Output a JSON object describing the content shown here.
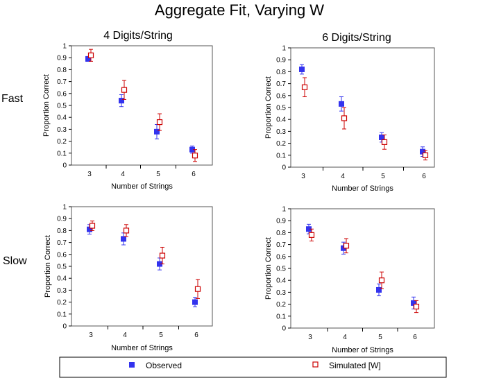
{
  "title": "Aggregate Fit, Varying W",
  "row_labels": [
    "Fast",
    "Slow"
  ],
  "legend": {
    "observed": "Observed",
    "simulated": "Simulated [W]"
  },
  "colors": {
    "observed": "#3333ee",
    "simulated": "#cc0000"
  },
  "chart_data": [
    {
      "type": "scatter",
      "title": "4 Digits/String",
      "row": "Fast",
      "xlabel": "Number of Strings",
      "ylabel": "Proportion Correct",
      "categories": [
        "3",
        "4",
        "5",
        "6"
      ],
      "ylim": [
        0,
        1
      ],
      "yticks": [
        "0",
        "0.1",
        "0.2",
        "0.3",
        "0.4",
        "0.5",
        "0.6",
        "0.7",
        "0.8",
        "0.9",
        "1"
      ],
      "grid": false,
      "series": [
        {
          "name": "Observed",
          "marker": "filled-square",
          "values": [
            0.89,
            0.54,
            0.28,
            0.13
          ],
          "err": [
            0.02,
            0.05,
            0.06,
            0.03
          ]
        },
        {
          "name": "Simulated [W]",
          "marker": "open-square",
          "values": [
            0.92,
            0.63,
            0.36,
            0.08
          ],
          "err": [
            0.05,
            0.08,
            0.07,
            0.05
          ]
        }
      ]
    },
    {
      "type": "scatter",
      "title": "6 Digits/String",
      "row": "Fast",
      "xlabel": "Number of Strings",
      "ylabel": "Proportion Correct",
      "categories": [
        "3",
        "4",
        "5",
        "6"
      ],
      "ylim": [
        0,
        1
      ],
      "yticks": [
        "0",
        "0.1",
        "0.2",
        "0.3",
        "0.4",
        "0.5",
        "0.6",
        "0.7",
        "0.8",
        "0.9",
        "1"
      ],
      "grid": false,
      "series": [
        {
          "name": "Observed",
          "marker": "filled-square",
          "values": [
            0.82,
            0.53,
            0.25,
            0.13
          ],
          "err": [
            0.04,
            0.06,
            0.04,
            0.04
          ]
        },
        {
          "name": "Simulated [W]",
          "marker": "open-square",
          "values": [
            0.67,
            0.41,
            0.21,
            0.1
          ],
          "err": [
            0.08,
            0.09,
            0.06,
            0.04
          ]
        }
      ]
    },
    {
      "type": "scatter",
      "title": "",
      "row": "Slow",
      "xlabel": "Number of Strings",
      "ylabel": "Proportion Correct",
      "categories": [
        "3",
        "4",
        "5",
        "6"
      ],
      "ylim": [
        0,
        1
      ],
      "yticks": [
        "0",
        "0.1",
        "0.2",
        "0.3",
        "0.4",
        "0.5",
        "0.6",
        "0.7",
        "0.8",
        "0.9",
        "1"
      ],
      "grid": false,
      "series": [
        {
          "name": "Observed",
          "marker": "filled-square",
          "values": [
            0.81,
            0.73,
            0.52,
            0.2
          ],
          "err": [
            0.04,
            0.05,
            0.05,
            0.04
          ]
        },
        {
          "name": "Simulated [W]",
          "marker": "open-square",
          "values": [
            0.84,
            0.8,
            0.59,
            0.31
          ],
          "err": [
            0.04,
            0.05,
            0.07,
            0.08
          ]
        }
      ]
    },
    {
      "type": "scatter",
      "title": "",
      "row": "Slow",
      "xlabel": "Number of Strings",
      "ylabel": "Proportion Correct",
      "categories": [
        "3",
        "4",
        "5",
        "6"
      ],
      "ylim": [
        0,
        1
      ],
      "yticks": [
        "0",
        "0.1",
        "0.2",
        "0.3",
        "0.4",
        "0.5",
        "0.6",
        "0.7",
        "0.8",
        "0.9",
        "1"
      ],
      "grid": false,
      "series": [
        {
          "name": "Observed",
          "marker": "filled-square",
          "values": [
            0.83,
            0.67,
            0.32,
            0.21
          ],
          "err": [
            0.04,
            0.05,
            0.05,
            0.05
          ]
        },
        {
          "name": "Simulated [W]",
          "marker": "open-square",
          "values": [
            0.78,
            0.69,
            0.4,
            0.18
          ],
          "err": [
            0.05,
            0.06,
            0.07,
            0.05
          ]
        }
      ]
    }
  ]
}
